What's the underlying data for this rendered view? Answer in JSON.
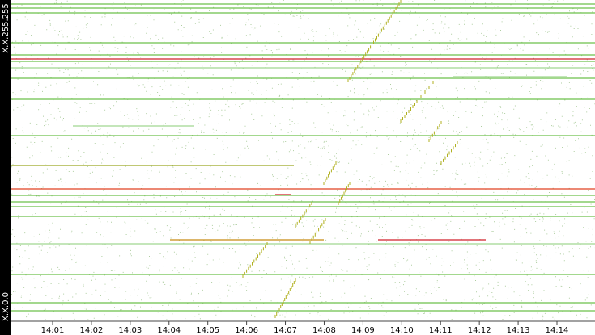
{
  "chart_data": {
    "type": "timeline",
    "categories": [
      "14:01",
      "14:02",
      "14:03",
      "14:04",
      "14:05",
      "14:06",
      "14:07",
      "14:08",
      "14:09",
      "14:10",
      "14:11",
      "14:12",
      "14:13",
      "14:14"
    ],
    "y_labels": [
      "X.X.255.255",
      "X.X.0.0"
    ]
  }
}
